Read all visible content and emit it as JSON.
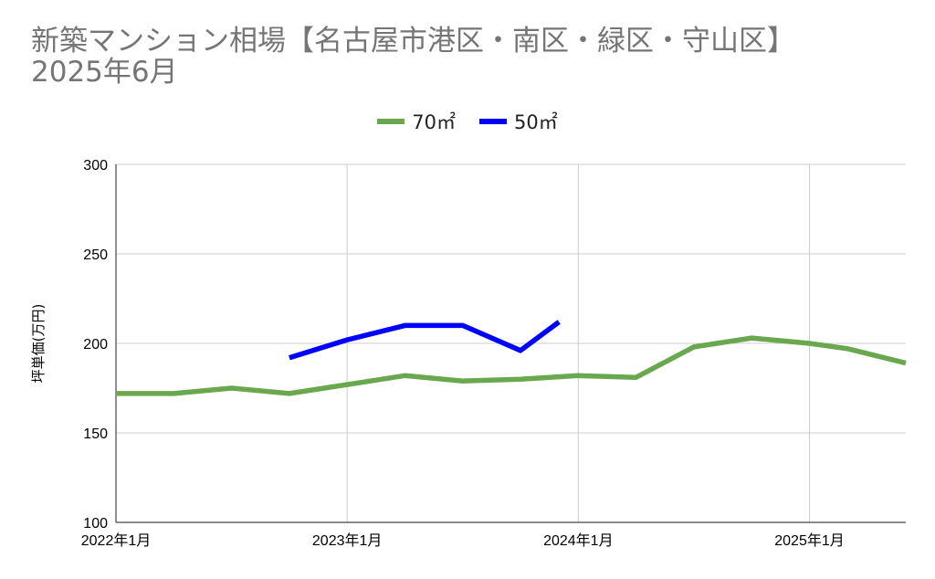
{
  "chart_data": {
    "type": "line",
    "title": "新築マンション相場【名古屋市港区・南区・緑区・守山区】",
    "subtitle": "2025年6月",
    "xlabel": "",
    "ylabel": "坪単価(万円)",
    "ylim": [
      100,
      300
    ],
    "y_ticks": [
      "300",
      "250",
      "200",
      "150",
      "100"
    ],
    "x_ticks": [
      "2022年1月",
      "2023年1月",
      "2024年1月",
      "2025年1月"
    ],
    "x_domain": [
      "2022-01",
      "2025-06"
    ],
    "grid": true,
    "legend_position": "top-center",
    "series": [
      {
        "name": "70㎡",
        "color": "#6aa84f",
        "points": [
          {
            "x": "2022-01",
            "y": 172
          },
          {
            "x": "2022-04",
            "y": 172
          },
          {
            "x": "2022-07",
            "y": 175
          },
          {
            "x": "2022-10",
            "y": 172
          },
          {
            "x": "2023-01",
            "y": 177
          },
          {
            "x": "2023-04",
            "y": 182
          },
          {
            "x": "2023-07",
            "y": 179
          },
          {
            "x": "2023-10",
            "y": 180
          },
          {
            "x": "2024-01",
            "y": 182
          },
          {
            "x": "2024-04",
            "y": 181
          },
          {
            "x": "2024-07",
            "y": 198
          },
          {
            "x": "2024-10",
            "y": 203
          },
          {
            "x": "2025-01",
            "y": 200
          },
          {
            "x": "2025-03",
            "y": 197
          },
          {
            "x": "2025-06",
            "y": 189
          }
        ]
      },
      {
        "name": "50㎡",
        "color": "#0000ff",
        "points": [
          {
            "x": "2022-10",
            "y": 192
          },
          {
            "x": "2023-01",
            "y": 202
          },
          {
            "x": "2023-04",
            "y": 210
          },
          {
            "x": "2023-07",
            "y": 210
          },
          {
            "x": "2023-10",
            "y": 196
          },
          {
            "x": "2023-12",
            "y": 212
          }
        ]
      }
    ]
  }
}
